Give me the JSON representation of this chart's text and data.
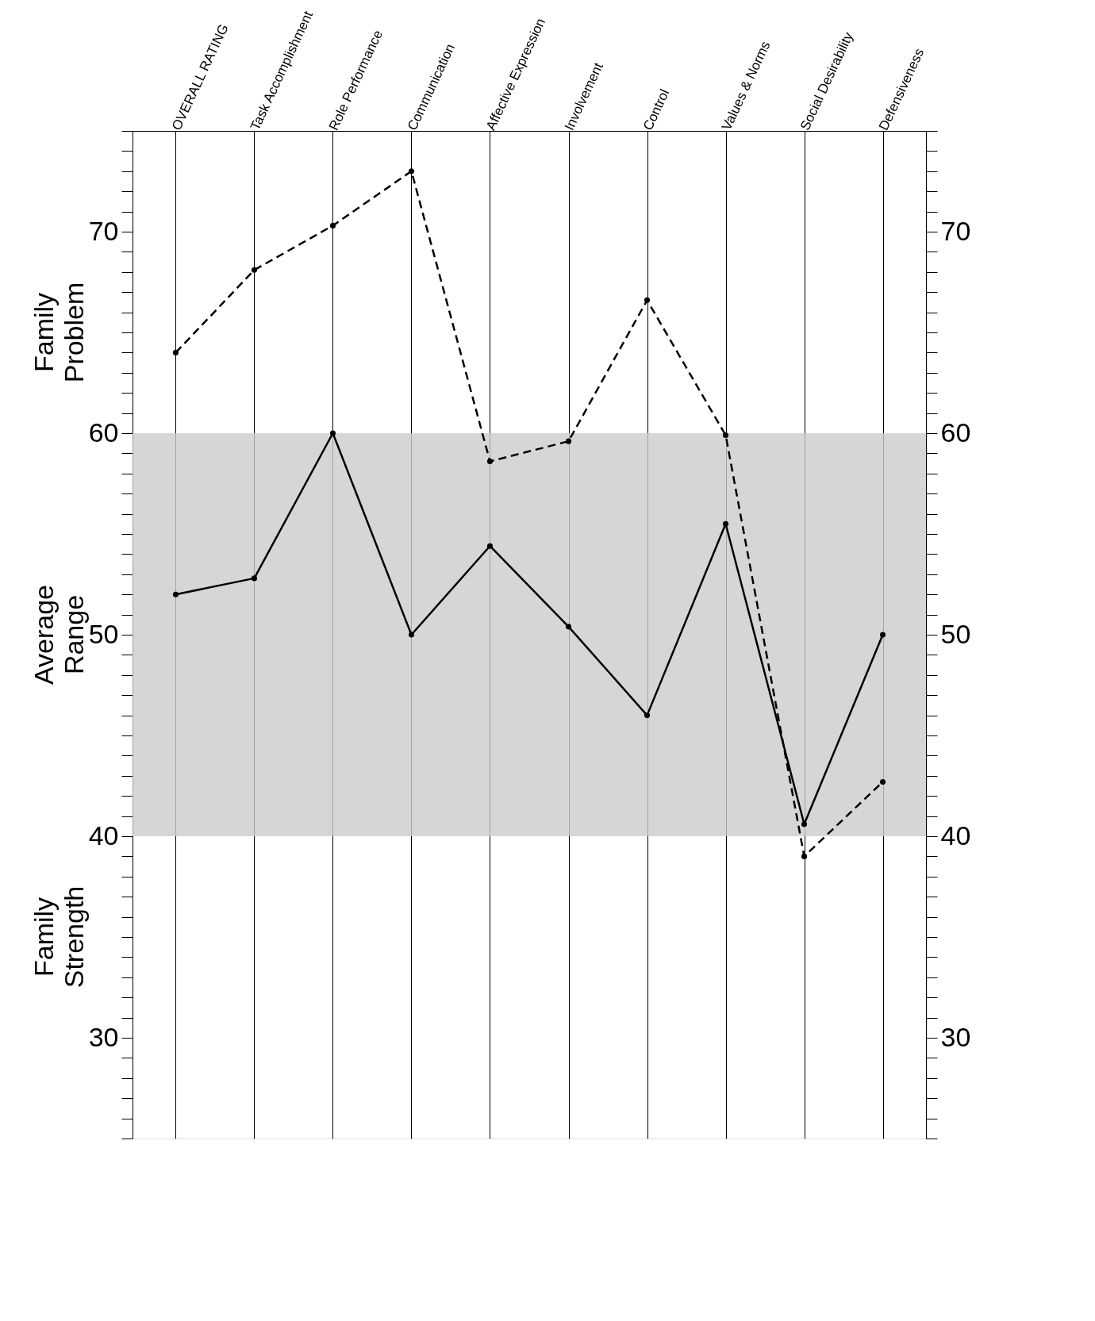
{
  "chart_data": {
    "type": "line",
    "categories": [
      "OVERALL RATING",
      "Task Accomplishment",
      "Role Performance",
      "Communication",
      "Affective Expression",
      "Involvement",
      "Control",
      "Values & Norms",
      "Social Desirability",
      "Defensiveness"
    ],
    "series": [
      {
        "color": "#000000",
        "line_style": "solid",
        "values": [
          52.0,
          52.8,
          60.0,
          50.0,
          54.4,
          50.4,
          46.0,
          55.5,
          40.6,
          50.0
        ]
      },
      {
        "color": "#000000",
        "line_style": "dashed",
        "values": [
          64.0,
          68.1,
          70.3,
          73.0,
          58.6,
          59.6,
          66.6,
          59.9,
          39.0,
          42.7
        ]
      }
    ],
    "marker": "circle",
    "ylim": [
      25,
      75
    ],
    "yticks": [
      {
        "value": 25,
        "label": null
      },
      {
        "value": 26,
        "label": null
      },
      {
        "value": 27,
        "label": null
      },
      {
        "value": 28,
        "label": null
      },
      {
        "value": 29,
        "label": null
      },
      30,
      {
        "value": 31,
        "label": null
      },
      {
        "value": 32,
        "label": null
      },
      {
        "value": 33,
        "label": null
      },
      {
        "value": 34,
        "label": null
      },
      {
        "value": 35,
        "label": null
      },
      {
        "value": 36,
        "label": null
      },
      {
        "value": 37,
        "label": null
      },
      {
        "value": 38,
        "label": null
      },
      {
        "value": 39,
        "label": null
      },
      40,
      {
        "value": 41,
        "label": null
      },
      {
        "value": 42,
        "label": null
      },
      {
        "value": 43,
        "label": null
      },
      {
        "value": 44,
        "label": null
      },
      {
        "value": 45,
        "label": null
      },
      {
        "value": 46,
        "label": null
      },
      {
        "value": 47,
        "label": null
      },
      {
        "value": 48,
        "label": null
      },
      {
        "value": 49,
        "label": null
      },
      50,
      {
        "value": 51,
        "label": null
      },
      {
        "value": 52,
        "label": null
      },
      {
        "value": 53,
        "label": null
      },
      {
        "value": 54,
        "label": null
      },
      {
        "value": 55,
        "label": null
      },
      {
        "value": 56,
        "label": null
      },
      {
        "value": 57,
        "label": null
      },
      {
        "value": 58,
        "label": null
      },
      {
        "value": 59,
        "label": null
      },
      60,
      {
        "value": 61,
        "label": null
      },
      {
        "value": 62,
        "label": null
      },
      {
        "value": 63,
        "label": null
      },
      {
        "value": 64,
        "label": null
      },
      {
        "value": 65,
        "label": null
      },
      {
        "value": 66,
        "label": null
      },
      {
        "value": 67,
        "label": null
      },
      {
        "value": 68,
        "label": null
      },
      {
        "value": 69,
        "label": null
      },
      70,
      {
        "value": 71,
        "label": null
      },
      {
        "value": 72,
        "label": null
      },
      {
        "value": 73,
        "label": null
      },
      {
        "value": 74,
        "label": null
      },
      {
        "value": 75,
        "label": null
      }
    ],
    "y2lim": [
      25,
      75
    ],
    "y2ticks": [
      {
        "value": 25,
        "label": null
      },
      {
        "value": 26,
        "label": null
      },
      {
        "value": 27,
        "label": null
      },
      {
        "value": 28,
        "label": null
      },
      {
        "value": 29,
        "label": null
      },
      30,
      {
        "value": 31,
        "label": null
      },
      {
        "value": 32,
        "label": null
      },
      {
        "value": 33,
        "label": null
      },
      {
        "value": 34,
        "label": null
      },
      {
        "value": 35,
        "label": null
      },
      {
        "value": 36,
        "label": null
      },
      {
        "value": 37,
        "label": null
      },
      {
        "value": 38,
        "label": null
      },
      {
        "value": 39,
        "label": null
      },
      40,
      {
        "value": 41,
        "label": null
      },
      {
        "value": 42,
        "label": null
      },
      {
        "value": 43,
        "label": null
      },
      {
        "value": 44,
        "label": null
      },
      {
        "value": 45,
        "label": null
      },
      {
        "value": 46,
        "label": null
      },
      {
        "value": 47,
        "label": null
      },
      {
        "value": 48,
        "label": null
      },
      {
        "value": 49,
        "label": null
      },
      50,
      {
        "value": 51,
        "label": null
      },
      {
        "value": 52,
        "label": null
      },
      {
        "value": 53,
        "label": null
      },
      {
        "value": 54,
        "label": null
      },
      {
        "value": 55,
        "label": null
      },
      {
        "value": 56,
        "label": null
      },
      {
        "value": 57,
        "label": null
      },
      {
        "value": 58,
        "label": null
      },
      {
        "value": 59,
        "label": null
      },
      60,
      {
        "value": 61,
        "label": null
      },
      {
        "value": 62,
        "label": null
      },
      {
        "value": 63,
        "label": null
      },
      {
        "value": 64,
        "label": null
      },
      {
        "value": 65,
        "label": null
      },
      {
        "value": 66,
        "label": null
      },
      {
        "value": 67,
        "label": null
      },
      {
        "value": 68,
        "label": null
      },
      {
        "value": 69,
        "label": null
      },
      70,
      {
        "value": 71,
        "label": null
      },
      {
        "value": 72,
        "label": null
      },
      {
        "value": 73,
        "label": null
      },
      {
        "value": 74,
        "label": null
      },
      {
        "value": 75,
        "label": null
      }
    ],
    "bands": [
      {
        "axis": "y",
        "from": 40,
        "to": 60,
        "color": "#cccccc"
      }
    ],
    "annotations": [
      "Family Problem",
      "Average Range",
      "Family Strength"
    ],
    "grid": "x"
  }
}
